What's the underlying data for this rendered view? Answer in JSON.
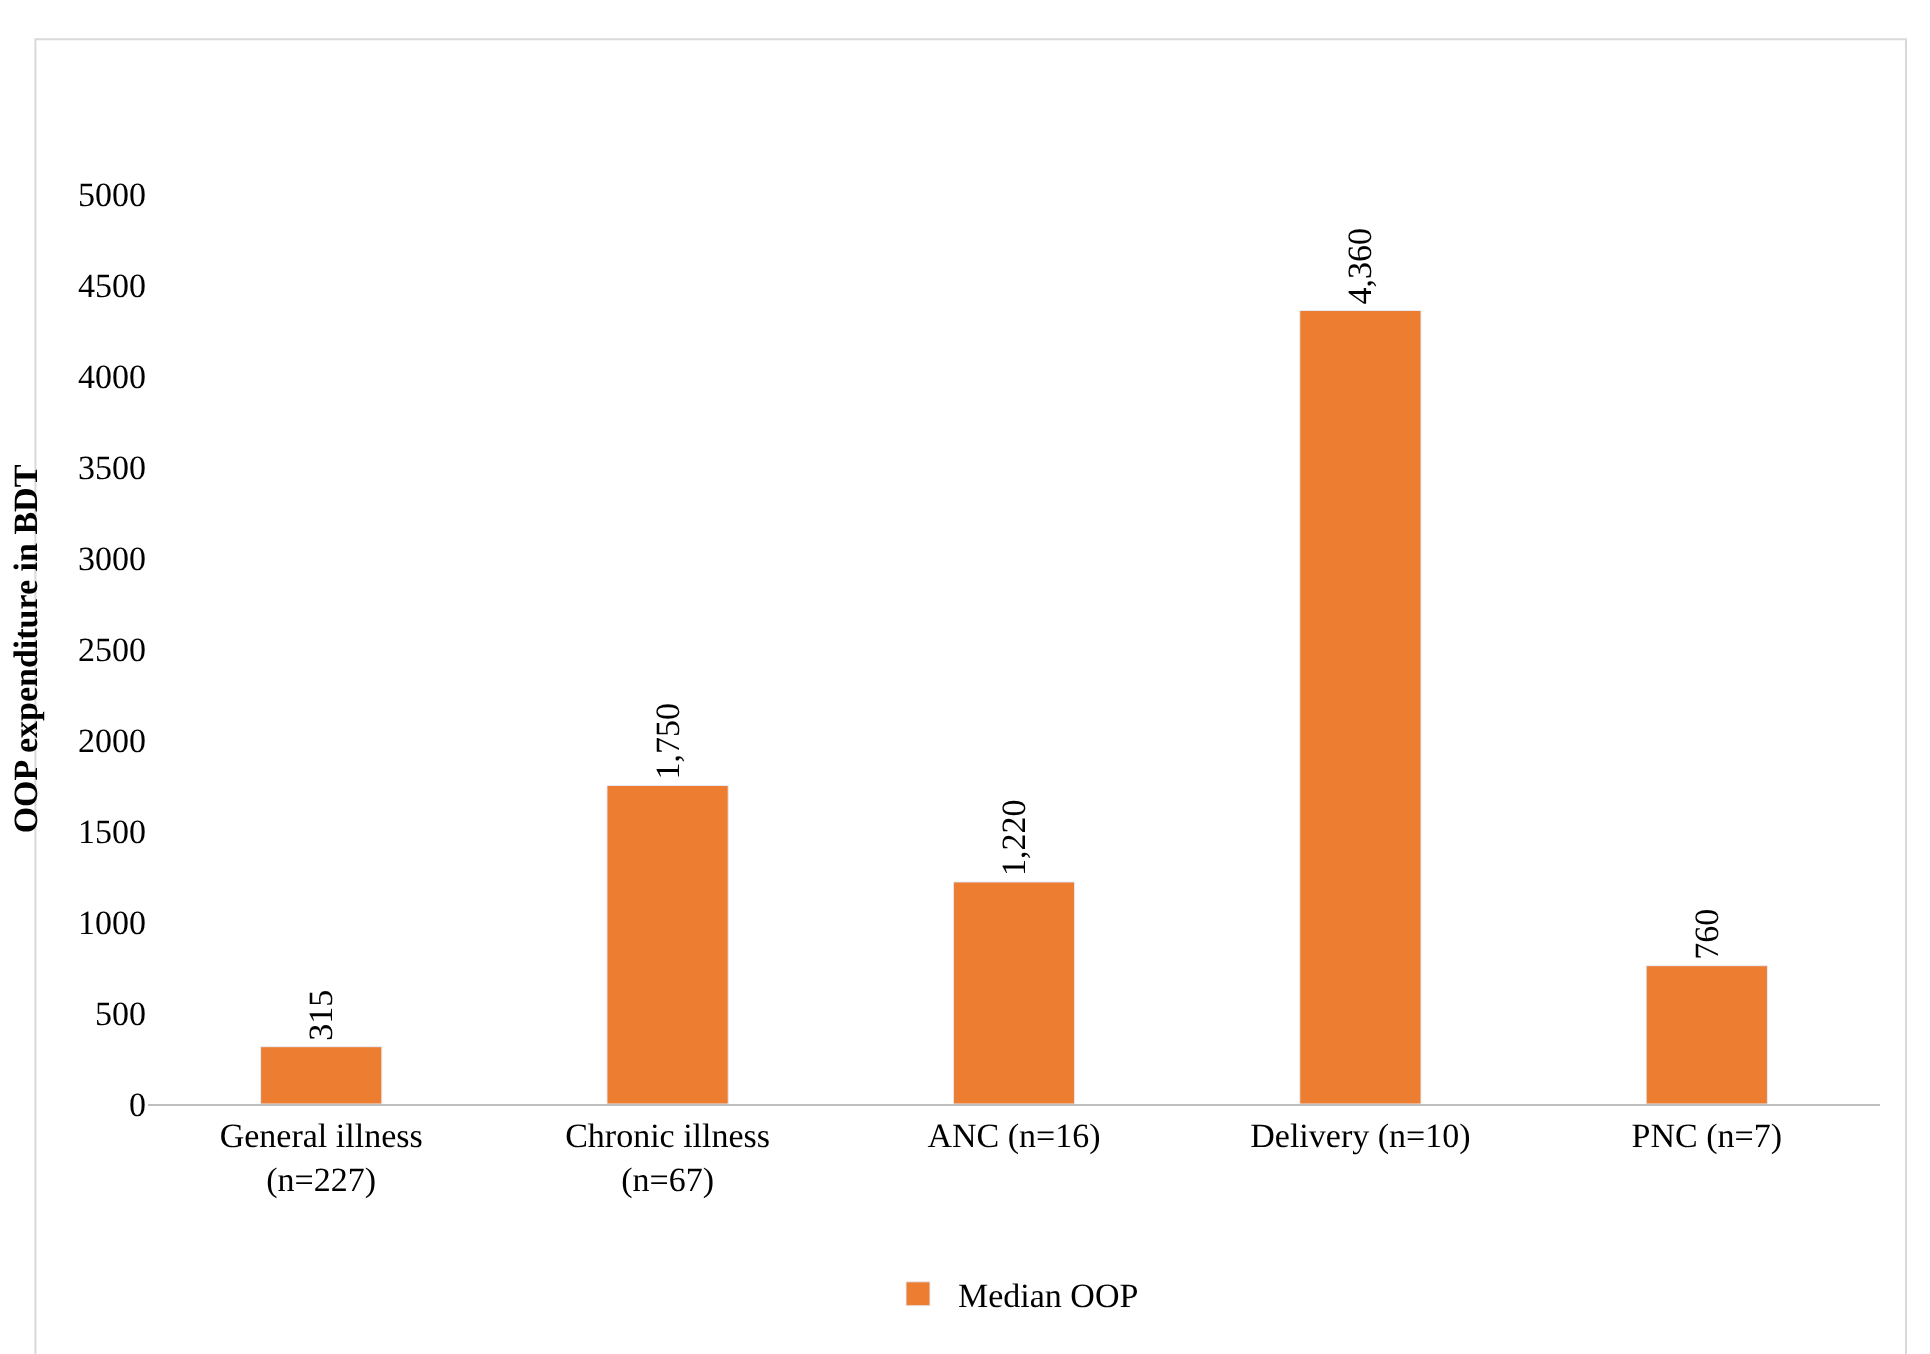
{
  "chart_data": {
    "type": "bar",
    "ylabel": "OOP expenditure in BDT",
    "categories": [
      "General illness\n(n=227)",
      "Chronic illness\n(n=67)",
      "ANC (n=16)",
      "Delivery (n=10)",
      "PNC (n=7)"
    ],
    "series": [
      {
        "name": "Median OOP",
        "color": "#ed7d31",
        "values": [
          315,
          1750,
          1220,
          4360,
          760
        ],
        "value_labels": [
          "315",
          "1,750",
          "1,220",
          "4,360",
          "760"
        ]
      }
    ],
    "ylim": [
      0,
      5000
    ],
    "yticks": [
      0,
      500,
      1000,
      1500,
      2000,
      2500,
      3000,
      3500,
      4000,
      4500,
      5000
    ],
    "legend": "bottom"
  }
}
